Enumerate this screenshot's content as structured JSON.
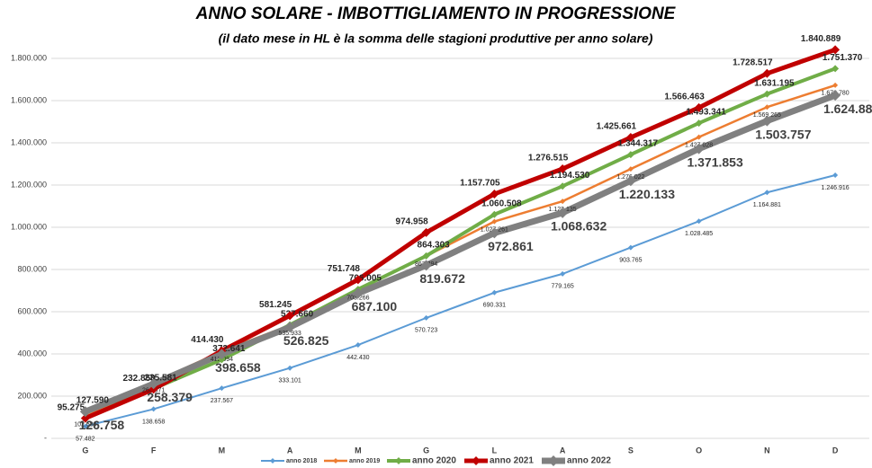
{
  "chart_data": {
    "type": "line",
    "title": "ANNO SOLARE - IMBOTTIGLIAMENTO IN PROGRESSIONE",
    "subtitle": "(il dato mese in HL è la somma delle stagioni produttive per anno solare)",
    "categories": [
      "G",
      "F",
      "M",
      "A",
      "M",
      "G",
      "L",
      "A",
      "S",
      "O",
      "N",
      "D"
    ],
    "ylim": [
      0,
      1800000
    ],
    "yticks": [
      {
        "value": 0,
        "label": "-"
      },
      {
        "value": 200000,
        "label": "200.000"
      },
      {
        "value": 400000,
        "label": "400.000"
      },
      {
        "value": 600000,
        "label": "600.000"
      },
      {
        "value": 800000,
        "label": "800.000"
      },
      {
        "value": 1000000,
        "label": "1.000.000"
      },
      {
        "value": 1200000,
        "label": "1.200.000"
      },
      {
        "value": 1400000,
        "label": "1.400.000"
      },
      {
        "value": 1600000,
        "label": "1.600.000"
      },
      {
        "value": 1800000,
        "label": "1.800.000"
      }
    ],
    "grid": true,
    "legend": "bottom",
    "series": [
      {
        "name": "anno 2018",
        "color": "#5b9bd5",
        "values": [
          57482,
          138658,
          237567,
          333101,
          442430,
          570723,
          690331,
          779165,
          903765,
          1028485,
          1164881,
          1246916
        ],
        "value_labels": [
          "57.482",
          "138.658",
          "237.567",
          "333.101",
          "442.430",
          "570.723",
          "690.331",
          "779.165",
          "903.765",
          "1.028.485",
          "1.164.881",
          "1.246.916"
        ]
      },
      {
        "name": "anno 2019",
        "color": "#ed7d31",
        "values": [
          102683,
          264371,
          412094,
          535933,
          703266,
          863894,
          1027261,
          1123135,
          1276022,
          1427028,
          1569265,
          1672780
        ],
        "value_labels": [
          "102.683",
          "264.371",
          "412.094",
          "535.933",
          "703.266",
          "863.894",
          "1.027.261",
          "1.123.135",
          "1.276.022",
          "1.427.028",
          "1.569.265",
          "1.672.780"
        ]
      },
      {
        "name": "anno 2020",
        "color": "#70ad47",
        "values": [
          127590,
          235581,
          372641,
          537660,
          706005,
          864303,
          1060508,
          1194530,
          1344317,
          1493341,
          1631195,
          1751370
        ],
        "value_labels": [
          "127.590",
          "235.581",
          "372.641",
          "537.660",
          "706.005",
          "864.303",
          "1.060.508",
          "1.194.530",
          "1.344.317",
          "1.493.341",
          "1.631.195",
          "1.751.370"
        ]
      },
      {
        "name": "anno 2021",
        "color": "#c00000",
        "values": [
          95275,
          232850,
          414430,
          581245,
          751748,
          974958,
          1157705,
          1276515,
          1425661,
          1566463,
          1728517,
          1840889
        ],
        "value_labels": [
          "95.275",
          "232.850",
          "414.430",
          "581.245",
          "751.748",
          "974.958",
          "1.157.705",
          "1.276.515",
          "1.425.661",
          "1.566.463",
          "1.728.517",
          "1.840.889"
        ]
      },
      {
        "name": "anno 2022",
        "color": "#808080",
        "values": [
          126758,
          258379,
          398658,
          526825,
          687100,
          819672,
          972861,
          1068632,
          1220133,
          1371853,
          1503757,
          1624880
        ],
        "value_labels": [
          "126.758",
          "258.379",
          "398.658",
          "526.825",
          "687.100",
          "819.672",
          "972.861",
          "1.068.632",
          "1.220.133",
          "1.371.853",
          "1.503.757",
          "1.624.880"
        ]
      }
    ]
  }
}
